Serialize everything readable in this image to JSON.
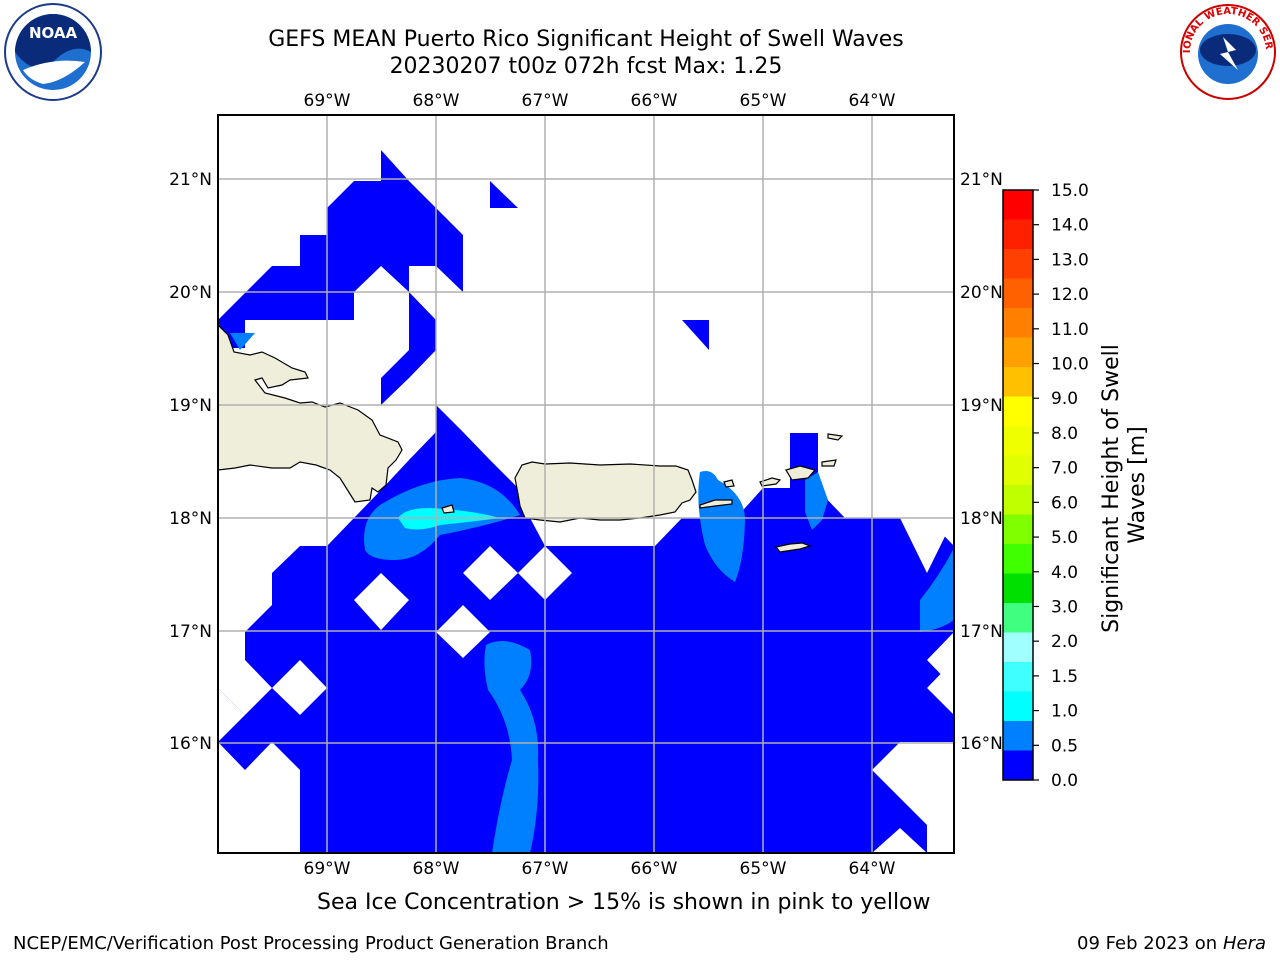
{
  "header": {
    "title_line1": "GEFS MEAN Puerto Rico Significant Height of Swell Waves",
    "title_line2": "20230207 t00z 072h fcst   Max: 1.25"
  },
  "logos": {
    "left": {
      "name": "noaa-logo",
      "text": "NOAA"
    },
    "right": {
      "name": "nws-logo",
      "text": "NATIONAL WEATHER SERVICE"
    }
  },
  "map": {
    "lon_labels": [
      "69°W",
      "68°W",
      "67°W",
      "66°W",
      "65°W",
      "64°W"
    ],
    "lat_labels": [
      "21°N",
      "20°N",
      "19°N",
      "18°N",
      "17°N",
      "16°N"
    ],
    "extent": {
      "lon": [
        -70.0,
        -63.25
      ],
      "lat": [
        15.0,
        21.55
      ]
    },
    "colors": {
      "land": "#efeedb",
      "swell_0_0.5": "#0000ff",
      "swell_0.5_1.0": "#0080ff",
      "swell_1.0_1.5": "#00ffff",
      "grid": "#b0b0b0"
    }
  },
  "colorbar": {
    "label": "Significant Height of Swell Waves [m]",
    "ticks": [
      "15.0",
      "14.0",
      "13.0",
      "12.0",
      "11.0",
      "10.0",
      "9.0",
      "8.0",
      "7.0",
      "6.0",
      "5.0",
      "4.0",
      "3.0",
      "2.0",
      "1.5",
      "1.0",
      "0.5",
      "0.0"
    ],
    "colors": [
      "#ff0000",
      "#ff2000",
      "#ff4000",
      "#ff6000",
      "#ff8000",
      "#ffa000",
      "#ffc000",
      "#ffff00",
      "#f0ff00",
      "#e0ff00",
      "#c0ff00",
      "#80ff00",
      "#40ff00",
      "#00e000",
      "#40ff80",
      "#a0ffff",
      "#40ffff",
      "#00ffff",
      "#0080ff",
      "#0000ff"
    ]
  },
  "footer": {
    "note": "Sea Ice Concentration > 15% is shown in pink to yellow",
    "credit": "NCEP/EMC/Verification Post Processing Product Generation Branch",
    "date": "09 Feb 2023 on",
    "host": "Hera"
  }
}
